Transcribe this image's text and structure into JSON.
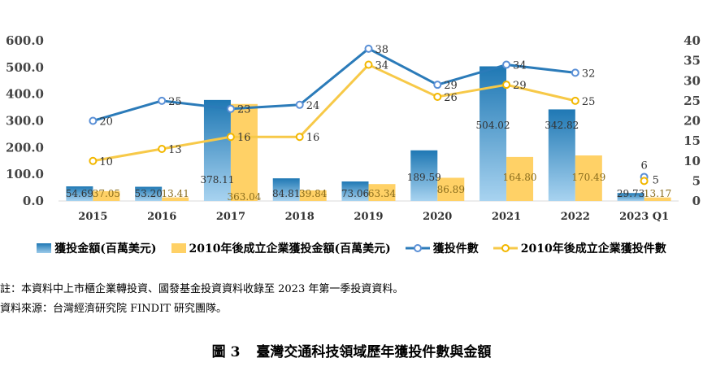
{
  "chart_data": {
    "type": "bar",
    "categories": [
      "2015",
      "2016",
      "2017",
      "2018",
      "2019",
      "2020",
      "2021",
      "2022",
      "2023 Q1"
    ],
    "left_axis": {
      "ylim": [
        0,
        600
      ],
      "ticks": [
        "600.0",
        "500.0",
        "400.0",
        "300.0",
        "200.0",
        "100.0",
        "0.0"
      ]
    },
    "right_axis": {
      "ylim": [
        0,
        40
      ],
      "ticks": [
        "40",
        "35",
        "30",
        "25",
        "20",
        "15",
        "10",
        "5",
        "0"
      ]
    },
    "grid": false,
    "legend_position": "bottom",
    "series": [
      {
        "name": "獲投金額(百萬美元)",
        "kind": "bar",
        "axis": "left",
        "color": "#1f78b4",
        "values": [
          54.69,
          53.2,
          378.11,
          84.81,
          73.06,
          189.59,
          504.02,
          342.82,
          29.73
        ],
        "labels": [
          "54.69",
          "53.20",
          "378.11",
          "84.81",
          "73.06",
          "189.59",
          "504.02",
          "342.82",
          "29.73"
        ]
      },
      {
        "name": "2010年後成立企業獲投金額(百萬美元)",
        "kind": "bar",
        "axis": "left",
        "color": "#ffd166",
        "values": [
          37.05,
          13.41,
          363.04,
          39.84,
          63.34,
          86.89,
          164.8,
          170.49,
          13.17
        ],
        "labels": [
          "37.05",
          "13.41",
          "363.04",
          "39.84",
          "63.34",
          "86.89",
          "164.80",
          "170.49",
          "13.17"
        ]
      },
      {
        "name": "獲投件數",
        "kind": "line",
        "axis": "right",
        "color": "#2b7bb9",
        "values": [
          20,
          25,
          23,
          24,
          38,
          29,
          34,
          32,
          6
        ],
        "labels": [
          "20",
          "25",
          "23",
          "24",
          "38",
          "29",
          "34",
          "32",
          "6"
        ]
      },
      {
        "name": "2010年後成立企業獲投件數",
        "kind": "line",
        "axis": "right",
        "color": "#f7c948",
        "values": [
          10,
          13,
          16,
          16,
          34,
          26,
          29,
          25,
          5
        ],
        "labels": [
          "10",
          "13",
          "16",
          "16",
          "34",
          "26",
          "29",
          "25",
          "5"
        ]
      }
    ]
  },
  "notes": {
    "note1": "註：本資料中上市櫃企業轉投資、國發基金投資資料收錄至 2023 年第一季投資資料。",
    "note2": "資料來源：台灣經濟研究院 FINDIT 研究團隊。"
  },
  "caption": {
    "number": "圖 3",
    "title": "臺灣交通科技領域歷年獲投件數與金額"
  }
}
